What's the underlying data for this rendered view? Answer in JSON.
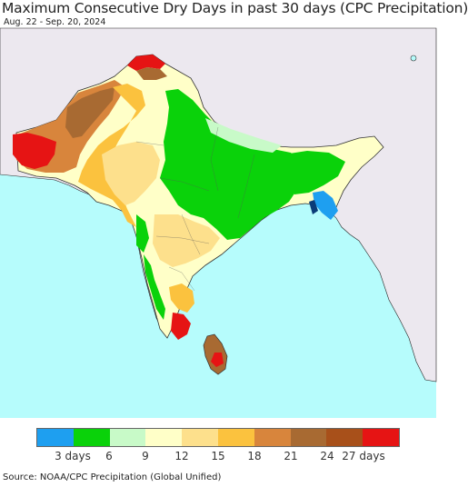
{
  "header": {
    "title": "Maximum Consecutive Dry Days in past 30 days (CPC Precipitation)",
    "date_range": "Aug. 22 - Sep. 20, 2024"
  },
  "legend": {
    "colors": [
      "#1e9ff0",
      "#0ad20a",
      "#c8fac8",
      "#ffffc8",
      "#fde08c",
      "#fbc23e",
      "#d8853c",
      "#a86a32",
      "#a8501a",
      "#e61414"
    ],
    "labels": [
      "3 days",
      "6",
      "9",
      "12",
      "15",
      "18",
      "21",
      "24",
      "27 days"
    ]
  },
  "footer": {
    "source": "Source: NOAA/CPC Precipitation (Global Unified)"
  }
}
